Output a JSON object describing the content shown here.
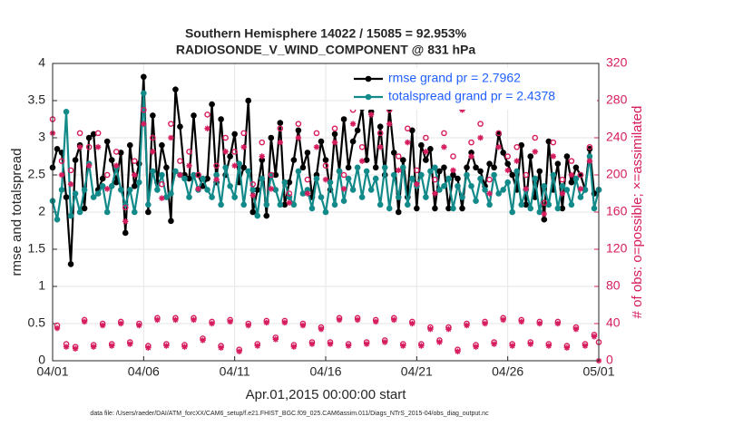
{
  "chart_data": {
    "type": "line",
    "title": "Southern Hemisphere 14022 / 15085 = 92.953%",
    "subtitle": "RADIOSONDE_V_WIND_COMPONENT @ 831 hPa",
    "xlabel": "Apr.01,2015 00:00:00 start",
    "ylabel": "rmse and totalspread",
    "y2label": "# of obs: o=possible; ×=assimilated",
    "footnote": "data file: /Users/raeder/DAI/ATM_forcXX/CAM6_setup/f.e21.FHIST_BGC.f09_025.CAM6assim.011/Diags_NTrS_2015-04/obs_diag_output.nc",
    "xlim": [
      0,
      30
    ],
    "xticks": [
      {
        "value": 0,
        "label": "04/01"
      },
      {
        "value": 5,
        "label": "04/06"
      },
      {
        "value": 10,
        "label": "04/11"
      },
      {
        "value": 15,
        "label": "04/16"
      },
      {
        "value": 20,
        "label": "04/21"
      },
      {
        "value": 25,
        "label": "04/26"
      },
      {
        "value": 30,
        "label": "05/01"
      }
    ],
    "ylim": [
      0,
      4
    ],
    "yticks": [
      0,
      0.5,
      1,
      1.5,
      2,
      2.5,
      3,
      3.5,
      4
    ],
    "y2lim": [
      0,
      320
    ],
    "y2ticks": [
      0,
      40,
      80,
      120,
      160,
      200,
      240,
      280,
      320
    ],
    "grid": true,
    "legend": "upper right",
    "x": [
      0,
      0.25,
      0.5,
      0.75,
      1,
      1.25,
      1.5,
      1.75,
      2,
      2.25,
      2.5,
      2.75,
      3,
      3.25,
      3.5,
      3.75,
      4,
      4.25,
      4.5,
      4.75,
      5,
      5.25,
      5.5,
      5.75,
      6,
      6.25,
      6.5,
      6.75,
      7,
      7.25,
      7.5,
      7.75,
      8,
      8.25,
      8.5,
      8.75,
      9,
      9.25,
      9.5,
      9.75,
      10,
      10.25,
      10.5,
      10.75,
      11,
      11.25,
      11.5,
      11.75,
      12,
      12.25,
      12.5,
      12.75,
      13,
      13.25,
      13.5,
      13.75,
      14,
      14.25,
      14.5,
      14.75,
      15,
      15.25,
      15.5,
      15.75,
      16,
      16.25,
      16.5,
      16.75,
      17,
      17.25,
      17.5,
      17.75,
      18,
      18.25,
      18.5,
      18.75,
      19,
      19.25,
      19.5,
      19.75,
      20,
      20.25,
      20.5,
      20.75,
      21,
      21.25,
      21.5,
      21.75,
      22,
      22.25,
      22.5,
      22.75,
      23,
      23.25,
      23.5,
      23.75,
      24,
      24.25,
      24.5,
      24.75,
      25,
      25.25,
      25.5,
      25.75,
      26,
      26.25,
      26.5,
      26.75,
      27,
      27.25,
      27.5,
      27.75,
      28,
      28.25,
      28.5,
      28.75,
      29,
      29.25,
      29.5,
      29.75,
      30
    ],
    "series": [
      {
        "name": "rmse grand pr = 2.7962",
        "color": "#000000",
        "marker": "dot",
        "line": true,
        "values": [
          2.6,
          2.85,
          2.8,
          2.2,
          1.3,
          2.7,
          2.9,
          2.05,
          3.0,
          3.05,
          2.3,
          2.45,
          2.95,
          2.7,
          2.4,
          2.8,
          1.72,
          2.9,
          2.35,
          2.65,
          3.82,
          2.0,
          3.3,
          2.4,
          2.9,
          2.6,
          1.88,
          3.65,
          3.15,
          2.5,
          2.45,
          3.3,
          2.5,
          2.35,
          2.45,
          3.45,
          2.4,
          3.25,
          2.5,
          2.75,
          3.05,
          2.4,
          2.6,
          3.5,
          2.0,
          2.3,
          2.7,
          1.95,
          3.0,
          2.5,
          3.2,
          2.1,
          2.4,
          2.7,
          3.1,
          2.6,
          2.8,
          2.2,
          2.5,
          2.95,
          2.7,
          2.3,
          3.05,
          2.55,
          3.25,
          2.6,
          2.95,
          3.1,
          3.4,
          2.7,
          3.35,
          2.6,
          3.15,
          2.5,
          3.4,
          2.8,
          2.0,
          2.7,
          2.2,
          3.1,
          2.05,
          2.9,
          2.7,
          2.85,
          2.05,
          2.55,
          2.6,
          2.05,
          2.5,
          2.45,
          2.05,
          2.6,
          2.8,
          2.6,
          2.55,
          2.35,
          2.65,
          2.6,
          3.05,
          2.8,
          2.65,
          2.5,
          2.3,
          2.9,
          2.1,
          2.75,
          2.2,
          2.55,
          1.9,
          2.95,
          2.3,
          2.65,
          2.05,
          2.75,
          2.4,
          2.6,
          2.5,
          2.3,
          2.85,
          2.25,
          2.3
        ]
      },
      {
        "name": "totalspread grand pr = 2.4378",
        "color": "#138a8a",
        "marker": "dot",
        "line": true,
        "values": [
          2.15,
          1.9,
          2.3,
          3.35,
          1.95,
          2.25,
          2.0,
          2.3,
          2.65,
          2.2,
          2.25,
          2.35,
          2.0,
          2.35,
          2.6,
          2.3,
          2.1,
          2.3,
          2.0,
          2.4,
          3.6,
          2.1,
          2.55,
          2.3,
          2.5,
          2.2,
          2.25,
          2.55,
          2.5,
          2.45,
          2.2,
          2.5,
          2.3,
          2.45,
          2.3,
          2.2,
          2.5,
          2.1,
          2.6,
          2.35,
          2.2,
          2.65,
          2.1,
          2.55,
          2.3,
          1.95,
          2.45,
          2.1,
          2.5,
          2.3,
          2.1,
          2.4,
          2.2,
          2.1,
          2.55,
          2.25,
          2.3,
          2.05,
          2.45,
          2.2,
          2.0,
          2.4,
          2.1,
          2.55,
          2.15,
          2.45,
          2.3,
          2.6,
          2.2,
          2.55,
          2.3,
          2.45,
          2.1,
          2.6,
          2.05,
          2.5,
          2.2,
          2.6,
          2.1,
          2.45,
          2.35,
          2.5,
          2.2,
          2.55,
          2.6,
          2.3,
          2.35,
          2.45,
          2.05,
          2.35,
          2.2,
          2.5,
          2.35,
          2.15,
          2.45,
          2.3,
          2.1,
          2.5,
          2.25,
          2.3,
          2.4,
          2.0,
          2.55,
          2.1,
          2.3,
          2.05,
          2.45,
          2.0,
          2.35,
          2.1,
          2.5,
          2.05,
          2.35,
          2.3,
          2.1,
          2.45,
          2.2,
          2.3,
          2.75,
          2.05,
          2.3
        ]
      },
      {
        "color": "#d61c5e",
        "marker": "circle",
        "line": false,
        "axis": "y2",
        "values": [
          260,
          38,
          215,
          18,
          205,
          15,
          245,
          44,
          230,
          17,
          245,
          40,
          200,
          18,
          225,
          42,
          165,
          20,
          215,
          40,
          270,
          16,
          240,
          46,
          190,
          18,
          255,
          46,
          215,
          17,
          225,
          46,
          200,
          24,
          265,
          42,
          210,
          16,
          240,
          44,
          225,
          12,
          245,
          40,
          190,
          18,
          235,
          43,
          200,
          25,
          250,
          43,
          180,
          17,
          255,
          40,
          195,
          20,
          245,
          36,
          210,
          20,
          250,
          46,
          200,
          18,
          270,
          46,
          230,
          20,
          280,
          44,
          245,
          22,
          270,
          46,
          220,
          18,
          250,
          42,
          205,
          18,
          240,
          36,
          195,
          22,
          245,
          36,
          220,
          12,
          285,
          40,
          235,
          17,
          255,
          42,
          195,
          20,
          245,
          46,
          220,
          18,
          230,
          44,
          200,
          20,
          240,
          42,
          170,
          18,
          235,
          42,
          195,
          16,
          215,
          36,
          200,
          18,
          230,
          28,
          20
        ]
      },
      {
        "color": "#d61c5e",
        "marker": "asterisk",
        "line": false,
        "axis": "y2",
        "values": [
          245,
          35,
          200,
          15,
          190,
          13,
          230,
          42,
          210,
          15,
          230,
          38,
          185,
          16,
          210,
          40,
          150,
          18,
          200,
          38,
          255,
          14,
          225,
          44,
          175,
          16,
          240,
          44,
          200,
          15,
          210,
          44,
          185,
          22,
          250,
          40,
          195,
          14,
          225,
          42,
          210,
          10,
          230,
          38,
          178,
          16,
          220,
          41,
          185,
          23,
          235,
          41,
          170,
          15,
          240,
          38,
          180,
          18,
          230,
          34,
          195,
          18,
          235,
          44,
          185,
          16,
          255,
          44,
          215,
          18,
          265,
          42,
          230,
          20,
          255,
          44,
          205,
          16,
          235,
          40,
          190,
          16,
          225,
          34,
          180,
          20,
          230,
          34,
          205,
          10,
          270,
          38,
          220,
          15,
          240,
          40,
          180,
          18,
          230,
          44,
          205,
          16,
          215,
          42,
          185,
          18,
          225,
          40,
          158,
          16,
          220,
          40,
          180,
          14,
          200,
          34,
          185,
          16,
          215,
          26,
          0
        ]
      }
    ]
  }
}
